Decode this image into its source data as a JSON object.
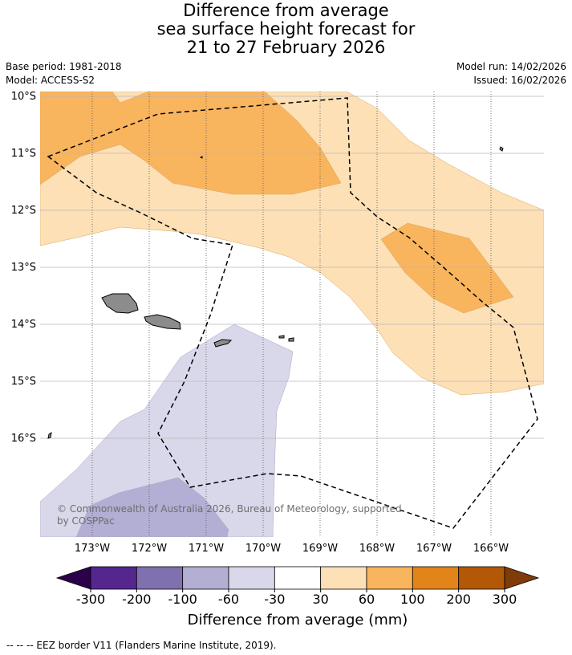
{
  "title": {
    "line1": "Difference from average",
    "line2": "sea surface height forecast for",
    "line3": "21 to 27 February 2026"
  },
  "meta": {
    "base_period": "Base period: 1981-2018",
    "model": "Model: ACCESS-S2",
    "model_run": "Model run: 14/02/2026",
    "issued": "Issued: 16/02/2026"
  },
  "map": {
    "lat_labels": [
      "10°S",
      "11°S",
      "12°S",
      "13°S",
      "14°S",
      "15°S",
      "16°S"
    ],
    "lon_labels": [
      "173°W",
      "172°W",
      "171°W",
      "170°W",
      "169°W",
      "168°W",
      "167°W",
      "166°W"
    ],
    "copyright_line1": "© Commonwealth of Australia 2026, Bureau of Meteorology, supported",
    "copyright_line2": "by COSPPac",
    "colors": {
      "land": "#8c8c8c",
      "pos_30_60": "#fde0b6",
      "pos_60_100": "#f9b45e",
      "neg_30_60": "#d8d8ea",
      "neg_60_100": "#b3aed3"
    }
  },
  "colorbar": {
    "ticks": [
      "-300",
      "-200",
      "-100",
      "-60",
      "-30",
      "30",
      "60",
      "100",
      "200",
      "300"
    ],
    "bins": [
      "#54278f",
      "#8170b0",
      "#b3aed3",
      "#d8d8ea",
      "#ffffff",
      "#fde0b6",
      "#f9b45e",
      "#e2841a",
      "#b35806"
    ],
    "low_extend_color": "#2d004b",
    "high_extend_color": "#7f3b08",
    "label": "Difference from average (mm)"
  },
  "footnote": "--  --  -- EEZ border V11 (Flanders Marine Institute, 2019)."
}
